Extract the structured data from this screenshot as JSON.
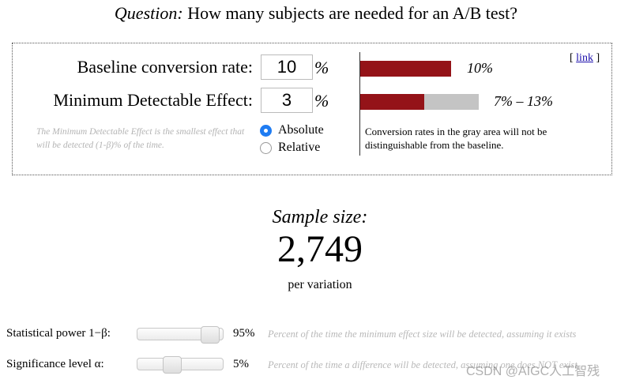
{
  "question": {
    "label": "Question:",
    "text": "How many subjects are needed for an A/B test?"
  },
  "baseline": {
    "label": "Baseline conversion rate:",
    "value": "10",
    "unit": "%",
    "range_text": "10%",
    "rate_fraction": 0.1
  },
  "mde": {
    "label": "Minimum Detectable Effect:",
    "value": "3",
    "unit": "%",
    "range_text": "7% – 13%",
    "range_low_fraction": 0.07,
    "range_high_fraction": 0.13,
    "note": "The Minimum Detectable Effect is the smallest effect that will be detected (1-β)% of the time."
  },
  "mode": {
    "options": [
      {
        "label": "Absolute",
        "checked": true
      },
      {
        "label": "Relative",
        "checked": false
      }
    ]
  },
  "gray_note": "Conversion rates in the gray area will not be distinguishable from the baseline.",
  "link": {
    "open": "[",
    "label": "link",
    "close": "]"
  },
  "result": {
    "label": "Sample size:",
    "value": "2,749",
    "unit": "per variation"
  },
  "power": {
    "label": "Statistical power 1−β:",
    "value": "95%",
    "level_fraction": 0.95,
    "description": "Percent of the time the minimum effect size will be detected, assuming it exists"
  },
  "significance": {
    "label": "Significance level α:",
    "value": "5%",
    "level_fraction": 0.05,
    "description": "Percent of the time a difference will be detected, assuming one does NOT exist"
  },
  "watermark": "CSDN @AIGC人工智残",
  "colors": {
    "bar_fill": "#941318",
    "bar_gray": "#c4c4c4",
    "radio_checked": "#1f7cf2",
    "link": "#1a0dab",
    "muted_text": "#b8b8b8"
  }
}
